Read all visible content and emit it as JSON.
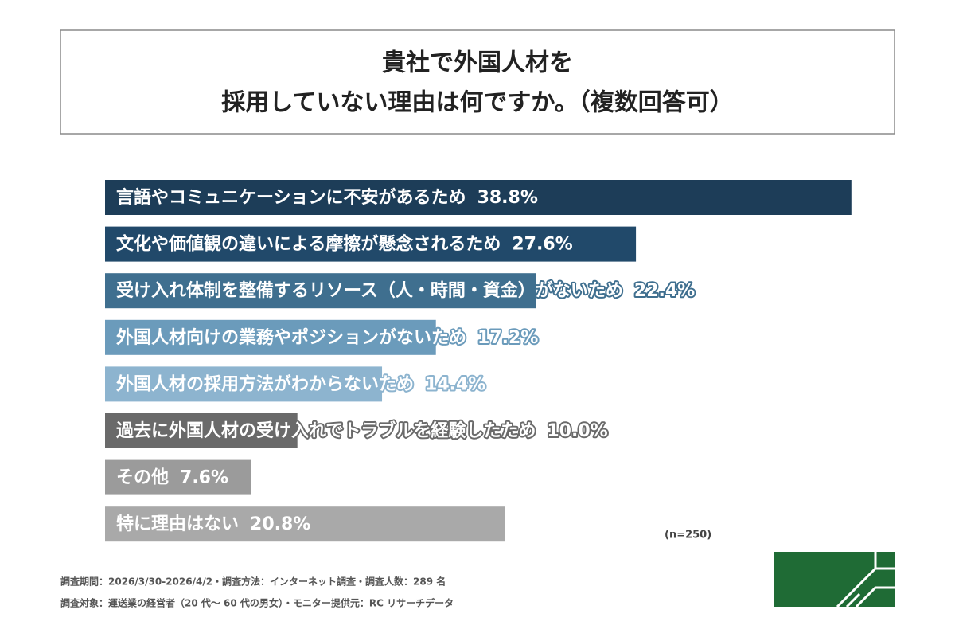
{
  "chart_data": {
    "type": "hbar",
    "title": [
      "貴社で外国人材を",
      "採用していない理由は何ですか。（複数回答可）"
    ],
    "categories": [
      "言語やコミュニケーションに不安があるため",
      "文化や価値観の違いによる摩擦が懸念されるため",
      "受け入れ体制を整備するリソース（人・時間・資金）がないため",
      "外国人材向けの業務やポジションがないため",
      "外国人材の採用方法がわからないため",
      "過去に外国人材の受け入れでトラブルを経験したため",
      "その他",
      "特に理由はない"
    ],
    "values": [
      38.8,
      27.6,
      22.4,
      17.2,
      14.4,
      10.0,
      7.6,
      20.8
    ],
    "value_labels": [
      "38.8%",
      "27.6%",
      "22.4%",
      "17.2%",
      "14.4%",
      "10.0%",
      "7.6%",
      "20.8%"
    ],
    "colors": [
      "#1d3d58",
      "#21496a",
      "#3f6f8f",
      "#6b9bbb",
      "#8db4cf",
      "#6a6a6a",
      "#9b9b9b",
      "#a9a9a9"
    ],
    "note": "(n=250)",
    "footer": [
      "調査期間：2026/3/30-2026/4/2・調査方法：インターネット調査・調査人数：289 名",
      "調査対象：運送業の経営者（20 代〜 60 代の男女）・モニター提供元：RC リサーチデータ"
    ]
  }
}
